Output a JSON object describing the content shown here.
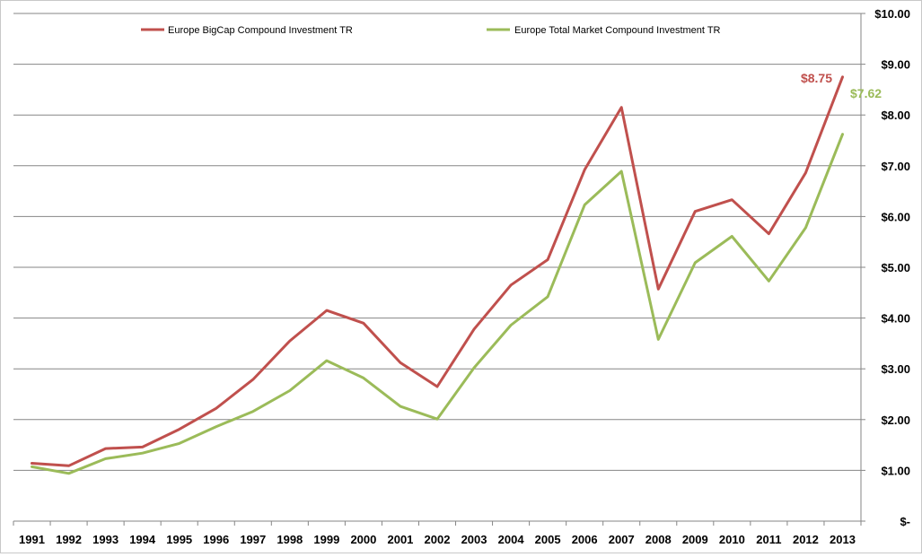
{
  "chart_data": {
    "type": "line",
    "categories": [
      "1991",
      "1992",
      "1993",
      "1994",
      "1995",
      "1996",
      "1997",
      "1998",
      "1999",
      "2000",
      "2001",
      "2002",
      "2003",
      "2004",
      "2005",
      "2006",
      "2007",
      "2008",
      "2009",
      "2010",
      "2011",
      "2012",
      "2013"
    ],
    "series": [
      {
        "name": "Europe BigCap Compound Investment TR",
        "color": "#c0504d",
        "values": [
          1.14,
          1.09,
          1.43,
          1.46,
          1.81,
          2.22,
          2.79,
          3.55,
          4.15,
          3.9,
          3.12,
          2.65,
          3.78,
          4.65,
          5.15,
          6.92,
          8.15,
          4.57,
          6.1,
          6.33,
          5.66,
          6.86,
          8.75
        ],
        "end_label": "$8.75"
      },
      {
        "name": "Europe Total Market Compound Investment TR",
        "color": "#9bbb59",
        "values": [
          1.07,
          0.94,
          1.23,
          1.34,
          1.53,
          1.86,
          2.16,
          2.57,
          3.16,
          2.82,
          2.26,
          2.01,
          3.02,
          3.86,
          4.42,
          6.23,
          6.89,
          3.58,
          5.09,
          5.61,
          4.73,
          5.78,
          7.62
        ],
        "end_label": "$7.62"
      }
    ],
    "y_tick_labels": [
      "$-",
      "$1.00",
      "$2.00",
      "$3.00",
      "$4.00",
      "$5.00",
      "$6.00",
      "$7.00",
      "$8.00",
      "$9.00",
      "$10.00"
    ],
    "ylim": [
      0,
      10
    ],
    "y_axis_side": "right",
    "grid": true,
    "legend_position": "top"
  }
}
